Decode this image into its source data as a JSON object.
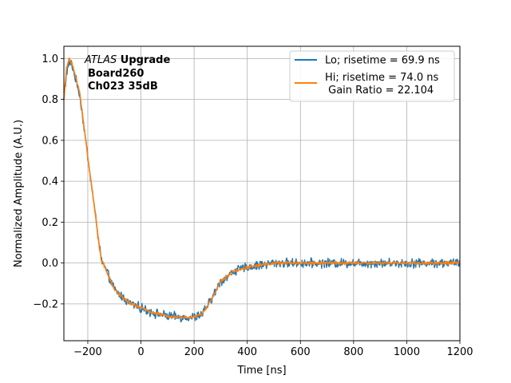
{
  "chart_data": {
    "type": "line",
    "title": "",
    "xlabel": "Time [ns]",
    "ylabel": "Normalized Amplitude (A.U.)",
    "xlim": [
      -290,
      1200
    ],
    "ylim": [
      -0.38,
      1.06
    ],
    "xticks": [
      -200,
      0,
      200,
      400,
      600,
      800,
      1000,
      1200
    ],
    "xtick_labels": [
      "−200",
      "0",
      "200",
      "400",
      "600",
      "800",
      "1000",
      "1200"
    ],
    "yticks": [
      -0.2,
      0.0,
      0.2,
      0.4,
      0.6,
      0.8,
      1.0
    ],
    "ytick_labels": [
      "−0.2",
      "0.0",
      "0.2",
      "0.4",
      "0.6",
      "0.8",
      "1.0"
    ],
    "grid": true,
    "legend_position": "top-right",
    "annotation": {
      "line1_italic": "ATLAS",
      "line1_bold": " Upgrade",
      "line2": "Board260",
      "line3": "Ch023 35dB"
    },
    "series": [
      {
        "name": "Lo; risetime = 69.9 ns",
        "color": "#1f77b4",
        "noise": 0.018,
        "x": [
          -290,
          -280,
          -270,
          -260,
          -250,
          -230,
          -200,
          -150,
          -100,
          -50,
          0,
          50,
          100,
          150,
          200,
          230,
          260,
          300,
          350,
          400,
          450,
          500,
          600,
          700,
          800,
          900,
          1000,
          1100,
          1200
        ],
        "y": [
          0.8,
          0.93,
          0.98,
          0.97,
          0.92,
          0.82,
          0.52,
          0.02,
          -0.13,
          -0.19,
          -0.22,
          -0.245,
          -0.26,
          -0.265,
          -0.265,
          -0.25,
          -0.19,
          -0.09,
          -0.04,
          -0.02,
          -0.01,
          0.0,
          0.0,
          0.0,
          0.0,
          0.0,
          0.0,
          0.0,
          0.0
        ]
      },
      {
        "name": "Hi; risetime = 74.0 ns\n Gain Ratio = 22.104",
        "color": "#ff7f0e",
        "noise": 0.006,
        "x": [
          -290,
          -280,
          -270,
          -260,
          -250,
          -230,
          -200,
          -150,
          -100,
          -50,
          0,
          50,
          100,
          150,
          200,
          230,
          260,
          300,
          350,
          400,
          450,
          500,
          600,
          700,
          800,
          900,
          1000,
          1100,
          1200
        ],
        "y": [
          0.8,
          0.95,
          1.0,
          0.98,
          0.93,
          0.83,
          0.52,
          0.02,
          -0.13,
          -0.19,
          -0.22,
          -0.245,
          -0.26,
          -0.265,
          -0.265,
          -0.25,
          -0.19,
          -0.09,
          -0.04,
          -0.02,
          -0.01,
          0.0,
          0.0,
          0.0,
          0.0,
          0.0,
          0.0,
          0.0,
          0.0
        ]
      }
    ]
  }
}
